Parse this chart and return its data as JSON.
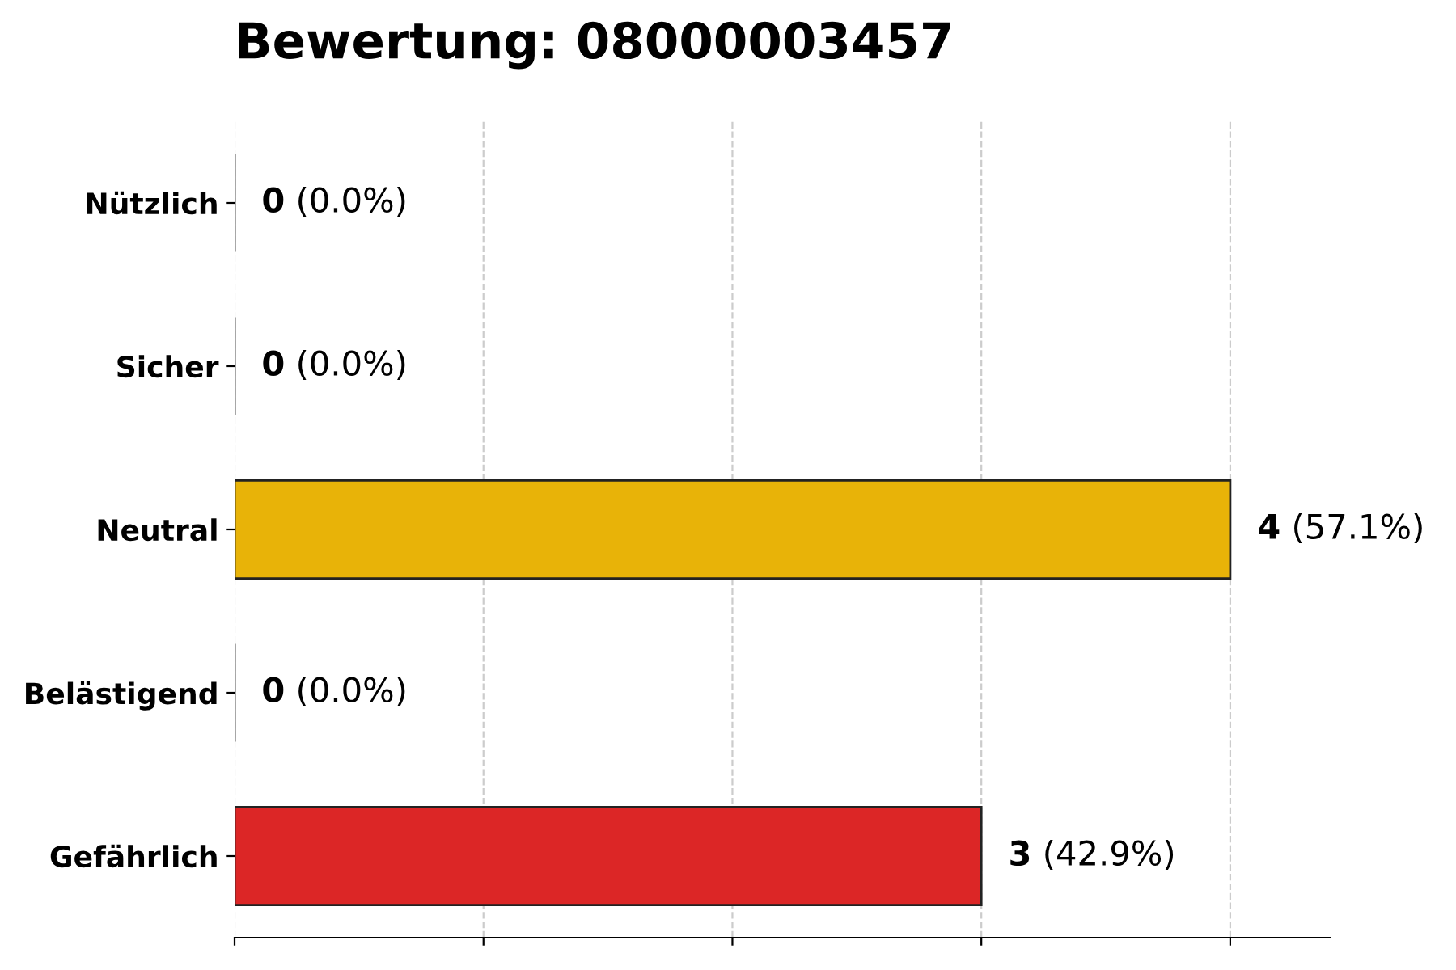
{
  "chart_data": {
    "type": "bar",
    "orientation": "horizontal",
    "title": "Bewertung: 08000003457",
    "categories": [
      "Nützlich",
      "Sicher",
      "Neutral",
      "Belästigend",
      "Gefährlich"
    ],
    "values": [
      0,
      0,
      4,
      0,
      3
    ],
    "colors": [
      "#222222",
      "#222222",
      "#e8b308",
      "#222222",
      "#dc2626"
    ],
    "value_labels": [
      "0 (0.0%)",
      "0 (0.0%)",
      "4 (57.1%)",
      "0 (0.0%)",
      "3 (42.9%)"
    ],
    "xlim": [
      0,
      4.4
    ],
    "xticks": [
      {
        "value": 0,
        "label": null
      },
      {
        "value": 1,
        "label": null
      },
      {
        "value": 2,
        "label": null
      },
      {
        "value": 3,
        "label": null
      },
      {
        "value": 4,
        "label": null
      }
    ],
    "tick_labels": "y",
    "grid": "x",
    "legend": false
  }
}
